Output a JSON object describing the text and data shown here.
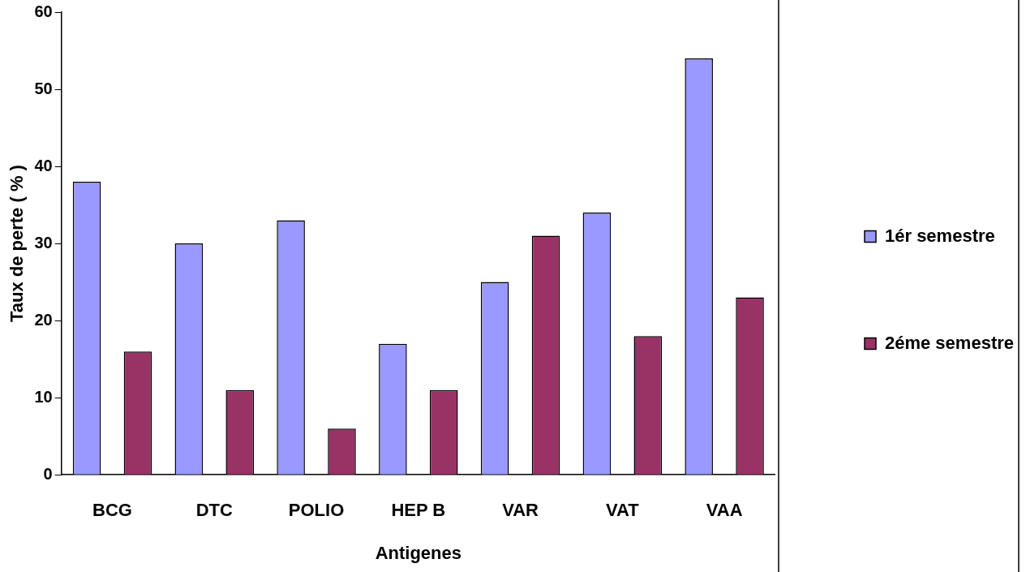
{
  "chart_data": {
    "type": "bar",
    "xlabel": "Antigenes",
    "ylabel": "Taux de perte ( % )",
    "categories": [
      "BCG",
      "DTC",
      "POLIO",
      "HEP B",
      "VAR",
      "VAT",
      "VAA"
    ],
    "series": [
      {
        "name": "1ér semestre",
        "color": "#9999ff",
        "values": [
          38,
          30,
          33,
          17,
          25,
          34,
          54
        ]
      },
      {
        "name": "2éme semestre",
        "color": "#993366",
        "values": [
          16,
          11,
          6,
          11,
          31,
          18,
          23
        ]
      }
    ],
    "ylim": [
      0,
      60
    ],
    "yticks": [
      0,
      10,
      20,
      30,
      40,
      50,
      60
    ],
    "grid": false,
    "legend": "right"
  }
}
